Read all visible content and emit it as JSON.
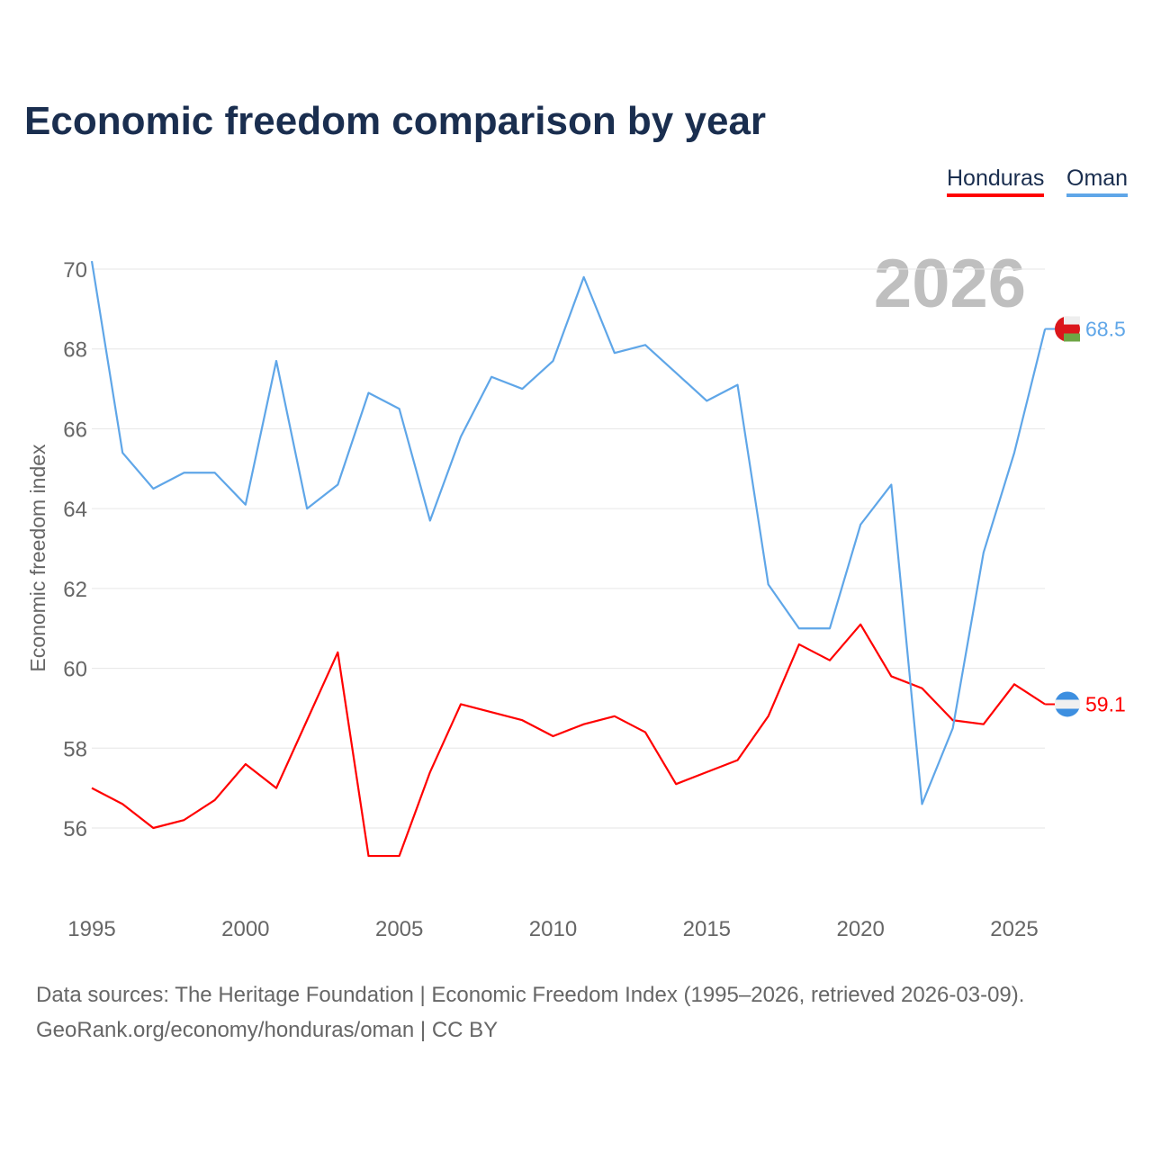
{
  "chart_data": {
    "type": "line",
    "title": "Economic freedom comparison by year",
    "ylabel": "Economic freedom index",
    "xlabel": "",
    "ylim": [
      54,
      71
    ],
    "xlim": [
      1995,
      2026
    ],
    "yticks": [
      56,
      58,
      60,
      62,
      64,
      66,
      68,
      70
    ],
    "xticks": [
      1995,
      2000,
      2005,
      2010,
      2015,
      2020,
      2025
    ],
    "grid": true,
    "legend_position": "top-right",
    "year_watermark": "2026",
    "x": [
      1995,
      1996,
      1997,
      1998,
      1999,
      2000,
      2001,
      2002,
      2003,
      2004,
      2005,
      2006,
      2007,
      2008,
      2009,
      2010,
      2011,
      2012,
      2013,
      2014,
      2015,
      2016,
      2017,
      2018,
      2019,
      2020,
      2021,
      2022,
      2023,
      2024,
      2025,
      2026
    ],
    "series": [
      {
        "name": "Honduras",
        "color": "#ff0000",
        "end_label": "59.1",
        "values": [
          57.0,
          56.6,
          56.0,
          56.2,
          56.7,
          57.6,
          57.0,
          58.7,
          60.4,
          55.3,
          55.3,
          57.4,
          59.1,
          58.9,
          58.7,
          58.3,
          58.6,
          58.8,
          58.4,
          57.1,
          57.4,
          57.7,
          58.8,
          60.6,
          60.2,
          61.1,
          59.8,
          59.5,
          58.7,
          58.6,
          59.6,
          59.1
        ]
      },
      {
        "name": "Oman",
        "color": "#5fa6e8",
        "end_label": "68.5",
        "values": [
          70.2,
          65.4,
          64.5,
          64.9,
          64.9,
          64.1,
          67.7,
          64.0,
          64.6,
          66.9,
          66.5,
          63.7,
          65.8,
          67.3,
          67.0,
          67.7,
          69.8,
          67.9,
          68.1,
          67.4,
          66.7,
          67.1,
          62.1,
          61.0,
          61.0,
          63.6,
          64.6,
          56.6,
          58.5,
          62.9,
          65.4,
          68.5
        ]
      }
    ]
  },
  "footer": {
    "line1": "Data sources: The Heritage Foundation | Economic Freedom Index (1995–2026, retrieved 2026-03-09).",
    "line2": "GeoRank.org/economy/honduras/oman | CC BY"
  }
}
